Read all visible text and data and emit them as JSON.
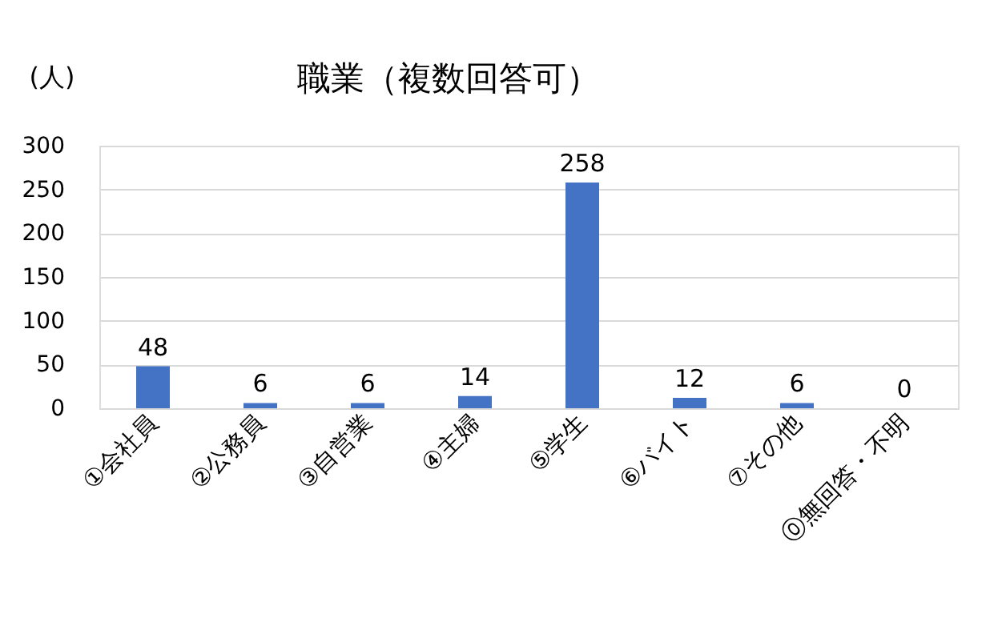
{
  "chart_data": {
    "type": "bar",
    "title": "職業（複数回答可）",
    "ylabel": "(人)",
    "categories": [
      "①会社員",
      "②公務員",
      "③自営業",
      "④主婦",
      "⑤学生",
      "⑥バイト",
      "⑦その他",
      "⓪無回答・不明"
    ],
    "values": [
      48,
      6,
      6,
      14,
      258,
      12,
      6,
      0
    ],
    "color": "#4472c4",
    "ylim": [
      0,
      300
    ],
    "yticks": [
      0,
      50,
      100,
      150,
      200,
      250,
      300
    ],
    "grid": "y",
    "data_labels": true
  }
}
